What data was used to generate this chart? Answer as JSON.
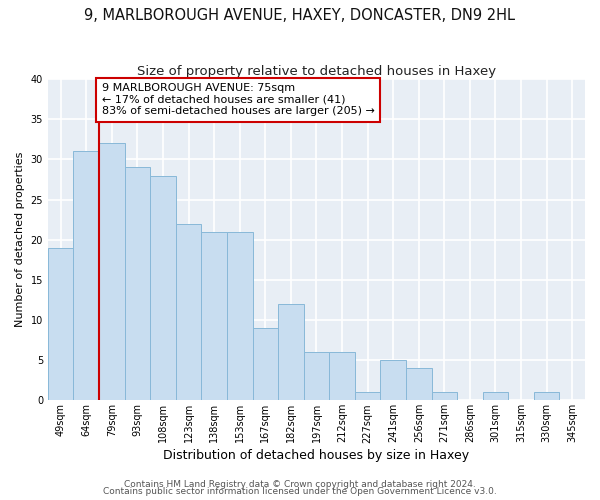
{
  "title": "9, MARLBOROUGH AVENUE, HAXEY, DONCASTER, DN9 2HL",
  "subtitle": "Size of property relative to detached houses in Haxey",
  "xlabel": "Distribution of detached houses by size in Haxey",
  "ylabel": "Number of detached properties",
  "categories": [
    "49sqm",
    "64sqm",
    "79sqm",
    "93sqm",
    "108sqm",
    "123sqm",
    "138sqm",
    "153sqm",
    "167sqm",
    "182sqm",
    "197sqm",
    "212sqm",
    "227sqm",
    "241sqm",
    "256sqm",
    "271sqm",
    "286sqm",
    "301sqm",
    "315sqm",
    "330sqm",
    "345sqm"
  ],
  "values": [
    19,
    31,
    32,
    29,
    28,
    22,
    21,
    21,
    9,
    12,
    6,
    6,
    1,
    5,
    4,
    1,
    0,
    1,
    0,
    1,
    0
  ],
  "bar_color": "#c8ddf0",
  "bar_edge_color": "#88b8d8",
  "property_line_color": "#cc0000",
  "property_line_index": 2,
  "annotation_text": "9 MARLBOROUGH AVENUE: 75sqm\n← 17% of detached houses are smaller (41)\n83% of semi-detached houses are larger (205) →",
  "annotation_box_facecolor": "#ffffff",
  "annotation_box_edgecolor": "#cc0000",
  "ylim": [
    0,
    40
  ],
  "yticks": [
    0,
    5,
    10,
    15,
    20,
    25,
    30,
    35,
    40
  ],
  "footer_line1": "Contains HM Land Registry data © Crown copyright and database right 2024.",
  "footer_line2": "Contains public sector information licensed under the Open Government Licence v3.0.",
  "fig_bg_color": "#ffffff",
  "plot_bg_color": "#e8eef5",
  "grid_color": "#ffffff",
  "title_fontsize": 10.5,
  "subtitle_fontsize": 9.5,
  "xlabel_fontsize": 9,
  "ylabel_fontsize": 8,
  "tick_fontsize": 7,
  "annot_fontsize": 8,
  "footer_fontsize": 6.5
}
